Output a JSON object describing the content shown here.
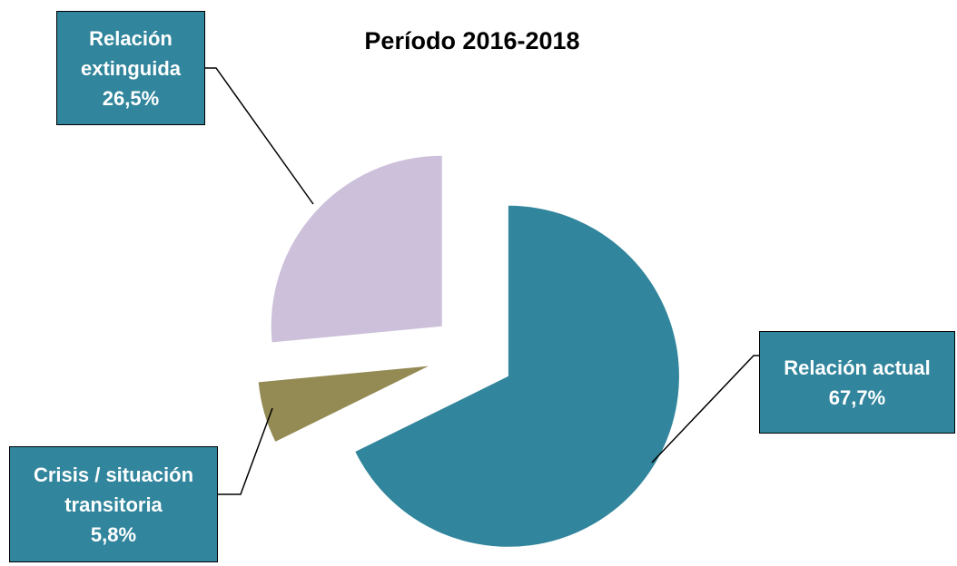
{
  "chart_data": {
    "type": "pie",
    "title": "Período 2016-2018",
    "categories": [
      "Relación actual",
      "Crisis / situación transitoria",
      "Relación extinguida"
    ],
    "values": [
      67.7,
      5.8,
      26.5
    ],
    "value_labels": [
      "67,7%",
      "5,8%",
      "26,5%"
    ],
    "colors": [
      "#31859c",
      "#948a54",
      "#ccc0da"
    ]
  }
}
